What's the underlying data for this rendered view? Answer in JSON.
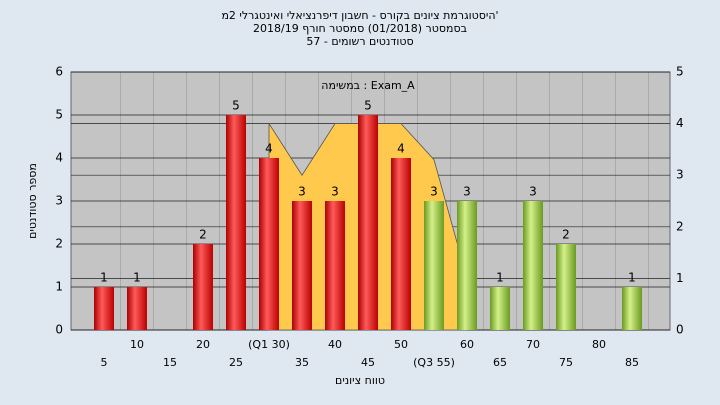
{
  "chart_data": {
    "type": "bar",
    "title": "'היסטוגרמת ציונים בקורס - חשבון דיפרנציאלי ואינטגרלי 2מ",
    "subtitle": "בסמסטר  (01/2018)  סמסטר חורף 2018/19",
    "subtitle2": "סטודנטים רשומים - 57",
    "annotation": "Exam_A : במשימה",
    "xlabel": "טווח ציונים",
    "ylabel": "מספר סטודנטים",
    "categories": [
      "5",
      "10",
      "15",
      "20",
      "25",
      "(Q1 30)",
      "35",
      "40",
      "45",
      "50",
      "(Q3 55)",
      "60",
      "65",
      "70",
      "75",
      "80",
      "85"
    ],
    "values": [
      1,
      1,
      null,
      2,
      5,
      4,
      3,
      3,
      5,
      4,
      3,
      3,
      1,
      3,
      2,
      null,
      1
    ],
    "colors": [
      "#e02020",
      "#e02020",
      "#e02020",
      "#e02020",
      "#e02020",
      "#e02020",
      "#e02020",
      "#e02020",
      "#e02020",
      "#e02020",
      "#9acd32",
      "#9acd32",
      "#9acd32",
      "#9acd32",
      "#9acd32",
      "#9acd32",
      "#9acd32"
    ],
    "area_series": {
      "color": "#ffc94d",
      "axis": "y2",
      "values": [
        null,
        null,
        null,
        null,
        null,
        4,
        3,
        4,
        4,
        4,
        3.3,
        1,
        null,
        null,
        null,
        null,
        null
      ]
    },
    "ylim": [
      0,
      6
    ],
    "yticks": [
      0,
      1,
      2,
      3,
      4,
      5,
      6
    ],
    "y2lim": [
      0,
      5
    ],
    "y2ticks": [
      0,
      1,
      2,
      3,
      4,
      5
    ],
    "grid": true
  }
}
